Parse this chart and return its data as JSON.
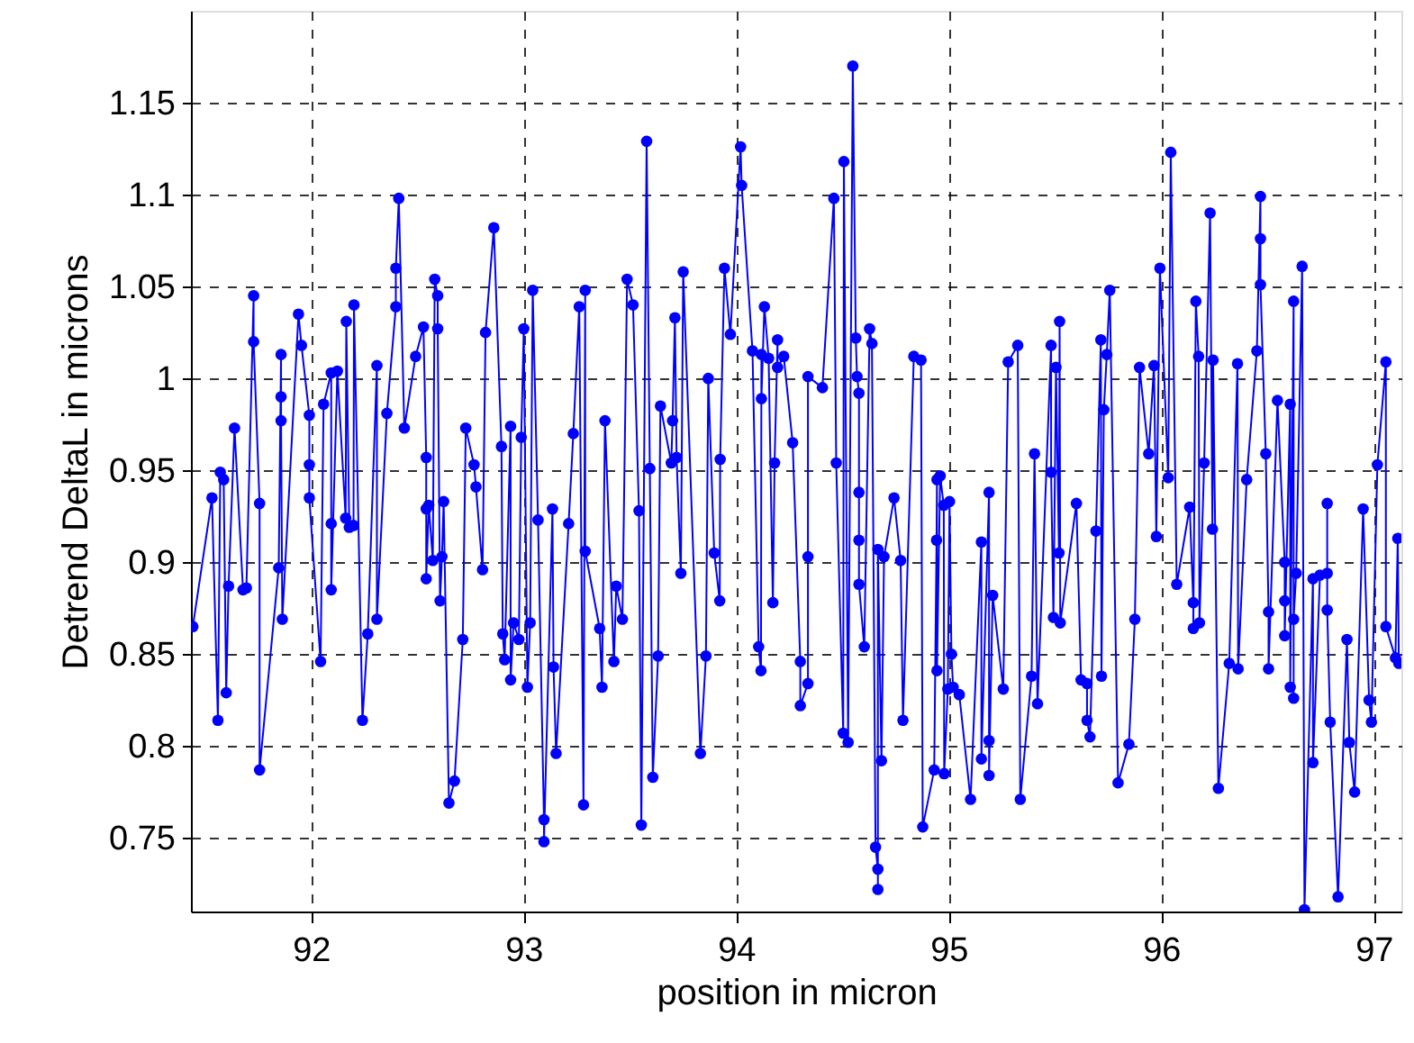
{
  "chart_data": {
    "type": "line",
    "xlabel": "position in micron",
    "ylabel": "Detrend DeltaL in microns",
    "xlim": [
      91.435,
      97.13
    ],
    "ylim": [
      0.71,
      1.2
    ],
    "xticks": [
      92,
      93,
      94,
      95,
      96,
      97
    ],
    "yticks": [
      0.75,
      0.8,
      0.85,
      0.9,
      0.95,
      1,
      1.05,
      1.1,
      1.15
    ],
    "grid": true,
    "marker": "circle",
    "line_style": "solid",
    "series": [
      {
        "color": "#0000ff",
        "x": [
          91.444,
          91.534,
          91.562,
          91.573,
          91.589,
          91.601,
          91.612,
          91.64,
          91.68,
          91.696,
          91.73,
          91.73,
          91.758,
          91.758,
          91.848,
          91.859,
          91.859,
          91.859,
          91.865,
          91.941,
          91.955,
          91.992,
          91.992,
          91.992,
          92.045,
          92.059,
          92.095,
          92.095,
          92.095,
          92.124,
          92.163,
          92.166,
          92.18,
          92.2,
          92.202,
          92.242,
          92.267,
          92.31,
          92.31,
          92.357,
          92.399,
          92.399,
          92.413,
          92.439,
          92.492,
          92.529,
          92.542,
          92.542,
          92.542,
          92.554,
          92.573,
          92.582,
          92.596,
          92.596,
          92.607,
          92.616,
          92.624,
          92.649,
          92.675,
          92.714,
          92.728,
          92.767,
          92.776,
          92.807,
          92.821,
          92.86,
          92.896,
          92.902,
          92.911,
          92.939,
          92.939,
          92.953,
          92.978,
          92.989,
          93.001,
          93.018,
          93.031,
          93.043,
          93.068,
          93.096,
          93.096,
          93.136,
          93.141,
          93.153,
          93.212,
          93.234,
          93.262,
          93.282,
          93.29,
          93.29,
          93.358,
          93.369,
          93.383,
          93.425,
          93.436,
          93.465,
          93.487,
          93.515,
          93.543,
          93.554,
          93.579,
          93.594,
          93.608,
          93.633,
          93.644,
          93.695,
          93.701,
          93.712,
          93.72,
          93.74,
          93.751,
          93.832,
          93.858,
          93.869,
          93.897,
          93.923,
          93.925,
          93.945,
          93.973,
          94.021,
          94.026,
          94.077,
          94.106,
          94.117,
          94.119,
          94.119,
          94.133,
          94.153,
          94.173,
          94.181,
          94.195,
          94.195,
          94.224,
          94.266,
          94.302,
          94.302,
          94.338,
          94.338,
          94.338,
          94.406,
          94.46,
          94.471,
          94.504,
          94.507,
          94.527,
          94.549,
          94.563,
          94.569,
          94.578,
          94.578,
          94.578,
          94.578,
          94.603,
          94.628,
          94.639,
          94.656,
          94.667,
          94.667,
          94.667,
          94.684,
          94.696,
          94.743,
          94.774,
          94.785,
          94.836,
          94.87,
          94.878,
          94.932,
          94.943,
          94.945,
          94.945,
          94.96,
          94.977,
          94.979,
          94.996,
          95.004,
          95.013,
          95.021,
          95.05,
          95.103,
          95.154,
          95.154,
          95.19,
          95.19,
          95.19,
          95.207,
          95.257,
          95.28,
          95.325,
          95.337,
          95.39,
          95.404,
          95.418,
          95.482,
          95.482,
          95.493,
          95.505,
          95.519,
          95.522,
          95.525,
          95.601,
          95.623,
          95.651,
          95.651,
          95.665,
          95.693,
          95.716,
          95.719,
          95.73,
          95.744,
          95.758,
          95.797,
          95.848,
          95.876,
          95.898,
          95.941,
          95.966,
          95.977,
          95.994,
          96.033,
          96.045,
          96.073,
          96.134,
          96.151,
          96.151,
          96.163,
          96.176,
          96.18,
          96.202,
          96.23,
          96.241,
          96.244,
          96.269,
          96.32,
          96.359,
          96.362,
          96.402,
          96.45,
          96.467,
          96.467,
          96.467,
          96.492,
          96.505,
          96.505,
          96.547,
          96.581,
          96.581,
          96.581,
          96.607,
          96.607,
          96.623,
          96.623,
          96.623,
          96.635,
          96.663,
          96.674,
          96.714,
          96.714,
          96.747,
          96.781,
          96.781,
          96.781,
          96.795,
          96.832,
          96.874,
          96.885,
          96.91,
          96.95,
          96.978,
          96.989,
          97.017,
          97.057,
          97.057,
          97.102,
          97.113,
          97.118
        ],
        "values": [
          0.865,
          0.935,
          0.814,
          0.949,
          0.945,
          0.829,
          0.887,
          0.973,
          0.885,
          0.886,
          1.045,
          1.02,
          0.932,
          0.787,
          0.897,
          1.013,
          0.99,
          0.977,
          0.869,
          1.035,
          1.018,
          0.98,
          0.953,
          0.935,
          0.846,
          0.986,
          1.003,
          0.921,
          0.885,
          1.004,
          0.924,
          1.031,
          0.919,
          0.92,
          1.04,
          0.814,
          0.861,
          1.007,
          0.869,
          0.981,
          1.039,
          1.06,
          1.098,
          0.973,
          1.012,
          1.028,
          0.957,
          0.929,
          0.891,
          0.931,
          0.901,
          1.054,
          1.045,
          1.027,
          0.879,
          0.903,
          0.933,
          0.769,
          0.781,
          0.858,
          0.973,
          0.953,
          0.941,
          0.896,
          1.025,
          1.082,
          0.963,
          0.861,
          0.847,
          0.974,
          0.836,
          0.867,
          0.858,
          0.968,
          1.027,
          0.832,
          0.867,
          1.048,
          0.923,
          0.76,
          0.748,
          0.929,
          0.843,
          0.796,
          0.921,
          0.97,
          1.039,
          0.768,
          1.048,
          0.906,
          0.864,
          0.832,
          0.977,
          0.846,
          0.887,
          0.869,
          1.054,
          1.04,
          0.928,
          0.757,
          1.129,
          0.951,
          0.783,
          0.849,
          0.985,
          0.954,
          0.977,
          1.033,
          0.957,
          0.894,
          1.058,
          0.796,
          0.849,
          1.0,
          0.905,
          0.879,
          0.956,
          1.06,
          1.024,
          1.126,
          1.105,
          1.015,
          0.854,
          0.841,
          1.013,
          0.989,
          1.039,
          1.011,
          0.878,
          0.954,
          1.021,
          1.006,
          1.012,
          0.965,
          0.846,
          0.822,
          0.834,
          0.903,
          1.001,
          0.995,
          1.098,
          0.954,
          0.807,
          1.118,
          0.802,
          1.17,
          1.022,
          1.001,
          0.992,
          0.938,
          0.912,
          0.888,
          0.854,
          1.027,
          1.019,
          0.745,
          0.733,
          0.722,
          0.907,
          0.792,
          0.903,
          0.935,
          0.901,
          0.814,
          1.012,
          1.01,
          0.756,
          0.787,
          0.912,
          0.945,
          0.841,
          0.947,
          0.931,
          0.785,
          0.831,
          0.933,
          0.85,
          0.832,
          0.828,
          0.771,
          0.911,
          0.793,
          0.938,
          0.803,
          0.784,
          0.882,
          0.831,
          1.009,
          1.018,
          0.771,
          0.838,
          0.959,
          0.823,
          1.018,
          0.949,
          0.87,
          1.006,
          0.905,
          1.031,
          0.867,
          0.932,
          0.836,
          0.834,
          0.814,
          0.805,
          0.917,
          1.021,
          0.838,
          0.983,
          1.013,
          1.048,
          0.78,
          0.801,
          0.869,
          1.006,
          0.959,
          1.007,
          0.914,
          1.06,
          0.946,
          1.123,
          0.888,
          0.93,
          0.878,
          0.864,
          1.042,
          1.012,
          0.867,
          0.954,
          1.09,
          0.918,
          1.01,
          0.777,
          0.845,
          1.008,
          0.842,
          0.945,
          1.015,
          1.099,
          1.076,
          1.051,
          0.959,
          0.873,
          0.842,
          0.988,
          0.9,
          0.879,
          0.86,
          0.986,
          0.832,
          1.042,
          0.826,
          0.869,
          0.894,
          1.061,
          0.711,
          0.891,
          0.791,
          0.893,
          0.894,
          0.932,
          0.874,
          0.813,
          0.718,
          0.858,
          0.802,
          0.775,
          0.929,
          0.825,
          0.813,
          0.953,
          1.009,
          0.865,
          0.848,
          0.913,
          0.845
        ]
      }
    ]
  }
}
